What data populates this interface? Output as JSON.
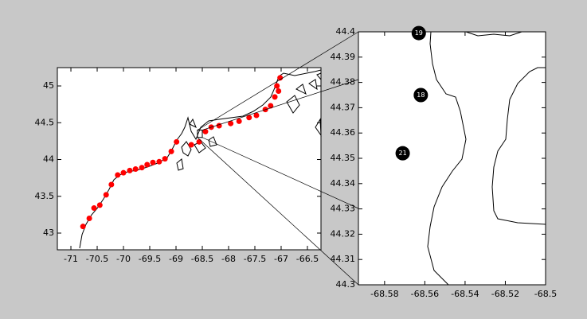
{
  "chart_data": [
    {
      "type": "scatter",
      "xlim": [
        -71.258,
        -66.242
      ],
      "ylim": [
        42.773,
        45.249
      ],
      "xticks": [
        -71,
        -70.5,
        -70,
        -69.5,
        -69,
        -68.5,
        -68,
        -67.5,
        -67,
        -66.5
      ],
      "yticks": [
        43,
        43.5,
        44,
        44.5,
        45
      ],
      "series": [
        {
          "color": "#ff0000",
          "x": [
            -70.77,
            -70.65,
            -70.56,
            -70.45,
            -70.33,
            -70.23,
            -70.11,
            -70.0,
            -69.88,
            -69.77,
            -69.65,
            -69.55,
            -69.44,
            -69.32,
            -69.21,
            -69.09,
            -68.99,
            -68.71,
            -68.56,
            -68.44,
            -68.33,
            -68.18,
            -67.96,
            -67.8,
            -67.61,
            -67.47,
            -67.3,
            -67.2,
            -67.12,
            -67.05,
            -67.08,
            -67.02
          ],
          "y": [
            43.09,
            43.2,
            43.34,
            43.38,
            43.52,
            43.66,
            43.79,
            43.82,
            43.85,
            43.87,
            43.89,
            43.93,
            43.96,
            43.97,
            44.01,
            44.11,
            44.24,
            44.2,
            44.24,
            44.38,
            44.44,
            44.46,
            44.49,
            44.52,
            44.57,
            44.6,
            44.68,
            44.73,
            44.85,
            44.93,
            45.0,
            45.11
          ]
        }
      ]
    },
    {
      "type": "scatter",
      "xlim": [
        -68.593,
        -68.5
      ],
      "ylim": [
        44.3,
        44.4
      ],
      "xticks": [
        -68.58,
        -68.56,
        -68.54,
        -68.52,
        -68.5
      ],
      "yticks": [
        44.3,
        44.31,
        44.32,
        44.33,
        44.34,
        44.35,
        44.36,
        44.37,
        44.38,
        44.39,
        44.4
      ],
      "series": [
        {
          "color": "#000000",
          "x": [
            -68.563,
            -68.562,
            -68.571
          ],
          "y": [
            44.3995,
            44.375,
            44.352
          ],
          "labels": [
            "19",
            "18",
            "21"
          ]
        }
      ]
    }
  ]
}
